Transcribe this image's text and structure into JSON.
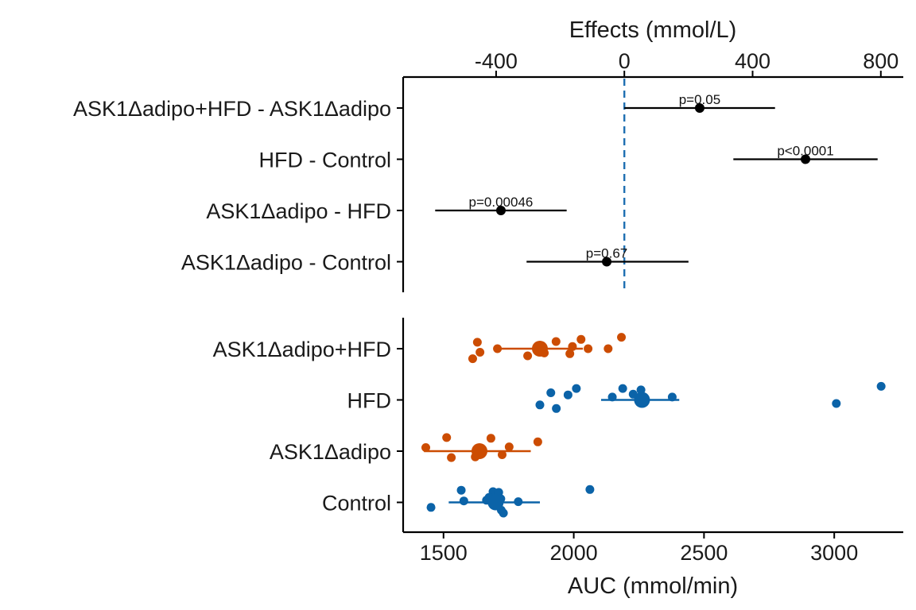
{
  "chart_data": [
    {
      "type": "scatter",
      "panel": "effects",
      "x_axis_title": "Effects (mmol/L)",
      "x_axis_position": "top",
      "xlim": [
        -690,
        870
      ],
      "x_ticks": [
        -400,
        0,
        400,
        800
      ],
      "x_tick_labels": [
        "-400",
        "0",
        "400",
        "800"
      ],
      "reference_line": {
        "x": 0,
        "style": "dashed",
        "color": "#1f6fb2"
      },
      "rows": [
        {
          "label": "ASK1Δadipo+HFD - ASK1Δadipo",
          "estimate": 235,
          "lower": 0,
          "upper": 470,
          "p_label": "p=0.05"
        },
        {
          "label": "HFD - Control",
          "estimate": 565,
          "lower": 340,
          "upper": 790,
          "p_label": "p<0.0001"
        },
        {
          "label": "ASK1Δadipo - HFD",
          "estimate": -385,
          "lower": -590,
          "upper": -180,
          "p_label": "p=0.00046"
        },
        {
          "label": "ASK1Δadipo - Control",
          "estimate": -55,
          "lower": -305,
          "upper": 200,
          "p_label": "p=0.67"
        }
      ]
    },
    {
      "type": "scatter",
      "panel": "groups",
      "x_axis_title": "AUC (mmol/min)",
      "x_axis_position": "bottom",
      "xlim": [
        1345,
        3265
      ],
      "x_ticks": [
        1500,
        2000,
        2500,
        3000
      ],
      "x_tick_labels": [
        "1500",
        "2000",
        "2500",
        "3000"
      ],
      "groups": [
        {
          "label": "ASK1Δadipo+HFD",
          "color": "#cc4c02",
          "mean": 1870,
          "lower": 1710,
          "upper": 2035,
          "points": [
            {
              "x": 2183,
              "j": 0.16
            },
            {
              "x": 2028,
              "j": 0.13
            },
            {
              "x": 1932,
              "j": 0.1
            },
            {
              "x": 1630,
              "j": 0.09
            },
            {
              "x": 2132,
              "j": 0.0
            },
            {
              "x": 1995,
              "j": 0.03
            },
            {
              "x": 2055,
              "j": 0.0
            },
            {
              "x": 1707,
              "j": 0.0
            },
            {
              "x": 1640,
              "j": -0.05
            },
            {
              "x": 1887,
              "j": -0.06
            },
            {
              "x": 1985,
              "j": -0.07
            },
            {
              "x": 1823,
              "j": -0.1
            },
            {
              "x": 1612,
              "j": -0.14
            }
          ]
        },
        {
          "label": "HFD",
          "color": "#0b63a8",
          "mean": 2262,
          "lower": 2105,
          "upper": 2405,
          "points": [
            {
              "x": 3180,
              "j": 0.19
            },
            {
              "x": 2010,
              "j": 0.16
            },
            {
              "x": 2188,
              "j": 0.16
            },
            {
              "x": 2258,
              "j": 0.14
            },
            {
              "x": 1912,
              "j": 0.1
            },
            {
              "x": 1978,
              "j": 0.07
            },
            {
              "x": 2228,
              "j": 0.08
            },
            {
              "x": 2378,
              "j": 0.04
            },
            {
              "x": 2148,
              "j": 0.04
            },
            {
              "x": 3008,
              "j": -0.05
            },
            {
              "x": 1870,
              "j": -0.07
            },
            {
              "x": 1933,
              "j": -0.12
            }
          ]
        },
        {
          "label": "ASK1Δadipo",
          "color": "#cc4c02",
          "mean": 1638,
          "lower": 1425,
          "upper": 1835,
          "points": [
            {
              "x": 1512,
              "j": 0.19
            },
            {
              "x": 1682,
              "j": 0.18
            },
            {
              "x": 1862,
              "j": 0.13
            },
            {
              "x": 1432,
              "j": 0.05
            },
            {
              "x": 1752,
              "j": 0.06
            },
            {
              "x": 1725,
              "j": -0.05
            },
            {
              "x": 1622,
              "j": -0.08
            },
            {
              "x": 1530,
              "j": -0.09
            }
          ]
        },
        {
          "label": "Control",
          "color": "#0b63a8",
          "mean": 1700,
          "lower": 1520,
          "upper": 1870,
          "points": [
            {
              "x": 2062,
              "j": 0.18
            },
            {
              "x": 1568,
              "j": 0.17
            },
            {
              "x": 1690,
              "j": 0.15
            },
            {
              "x": 1712,
              "j": 0.14
            },
            {
              "x": 1675,
              "j": 0.07
            },
            {
              "x": 1720,
              "j": 0.05
            },
            {
              "x": 1578,
              "j": 0.02
            },
            {
              "x": 1665,
              "j": 0.03
            },
            {
              "x": 1787,
              "j": 0.01
            },
            {
              "x": 1698,
              "j": -0.04
            },
            {
              "x": 1452,
              "j": -0.07
            },
            {
              "x": 1722,
              "j": -0.11
            },
            {
              "x": 1730,
              "j": -0.15
            }
          ]
        }
      ]
    }
  ]
}
